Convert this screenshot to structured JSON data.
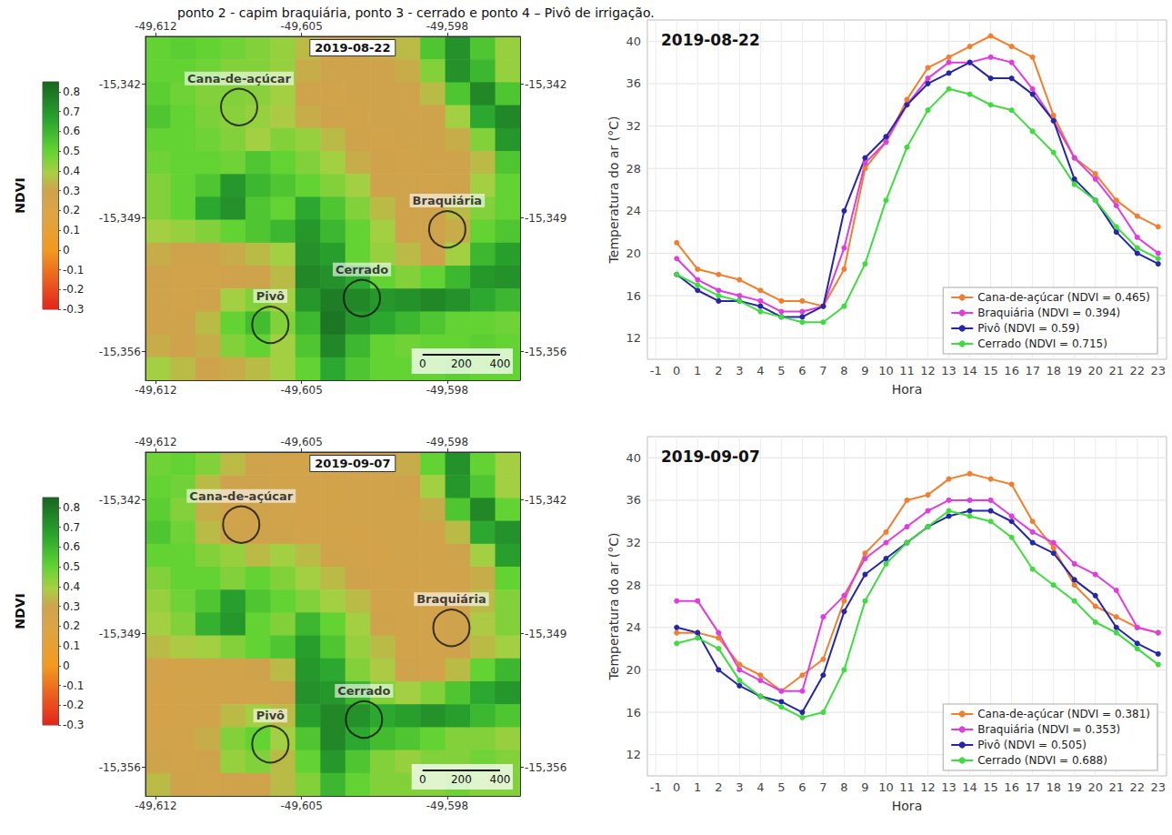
{
  "caption": "ponto 2 - capim braquiária, ponto 3 - cerrado e ponto 4 – Pivô de irrigação.",
  "chart_data": [
    {
      "type": "heatmap",
      "title": "2019-08-22",
      "x": [
        -49.6119,
        -49.6107,
        -49.6095,
        -49.6083,
        -49.6071,
        -49.6059,
        -49.6047,
        -49.6035,
        -49.6023,
        -49.6011,
        -49.5999,
        -49.5987,
        -49.5975,
        -49.5963,
        -49.5951
      ],
      "y": [
        -15.3401,
        -15.3413,
        -15.3425,
        -15.3437,
        -15.3449,
        -15.3461,
        -15.3473,
        -15.3485,
        -15.3497,
        -15.3509,
        -15.3521,
        -15.3533,
        -15.3545,
        -15.3557,
        -15.3569
      ],
      "values": [
        [
          0.5,
          0.52,
          0.5,
          0.48,
          0.45,
          0.42,
          0.35,
          0.3,
          0.3,
          0.32,
          0.35,
          0.55,
          0.72,
          0.55,
          0.42
        ],
        [
          0.5,
          0.5,
          0.48,
          0.45,
          0.45,
          0.42,
          0.32,
          0.3,
          0.3,
          0.3,
          0.32,
          0.45,
          0.72,
          0.6,
          0.42
        ],
        [
          0.52,
          0.48,
          0.45,
          0.45,
          0.44,
          0.4,
          0.3,
          0.28,
          0.3,
          0.3,
          0.3,
          0.35,
          0.55,
          0.75,
          0.55
        ],
        [
          0.55,
          0.5,
          0.46,
          0.44,
          0.42,
          0.38,
          0.32,
          0.3,
          0.28,
          0.3,
          0.3,
          0.3,
          0.4,
          0.65,
          0.75
        ],
        [
          0.5,
          0.5,
          0.48,
          0.45,
          0.4,
          0.45,
          0.42,
          0.35,
          0.3,
          0.28,
          0.3,
          0.3,
          0.32,
          0.45,
          0.7
        ],
        [
          0.48,
          0.5,
          0.5,
          0.48,
          0.55,
          0.5,
          0.45,
          0.4,
          0.32,
          0.3,
          0.28,
          0.3,
          0.3,
          0.35,
          0.55
        ],
        [
          0.45,
          0.5,
          0.55,
          0.7,
          0.6,
          0.55,
          0.5,
          0.45,
          0.4,
          0.3,
          0.3,
          0.28,
          0.3,
          0.4,
          0.5
        ],
        [
          0.45,
          0.5,
          0.65,
          0.72,
          0.55,
          0.5,
          0.65,
          0.55,
          0.45,
          0.35,
          0.3,
          0.3,
          0.35,
          0.45,
          0.5
        ],
        [
          0.4,
          0.42,
          0.45,
          0.5,
          0.55,
          0.6,
          0.7,
          0.6,
          0.5,
          0.4,
          0.3,
          0.3,
          0.32,
          0.5,
          0.55
        ],
        [
          0.32,
          0.3,
          0.3,
          0.32,
          0.35,
          0.4,
          0.72,
          0.68,
          0.5,
          0.42,
          0.35,
          0.3,
          0.4,
          0.6,
          0.68
        ],
        [
          0.3,
          0.28,
          0.28,
          0.3,
          0.3,
          0.35,
          0.75,
          0.72,
          0.65,
          0.5,
          0.45,
          0.5,
          0.6,
          0.7,
          0.72
        ],
        [
          0.3,
          0.28,
          0.3,
          0.4,
          0.45,
          0.4,
          0.7,
          0.78,
          0.75,
          0.7,
          0.72,
          0.75,
          0.72,
          0.65,
          0.6
        ],
        [
          0.3,
          0.3,
          0.35,
          0.5,
          0.58,
          0.45,
          0.6,
          0.8,
          0.7,
          0.65,
          0.6,
          0.55,
          0.5,
          0.5,
          0.48
        ],
        [
          0.32,
          0.3,
          0.32,
          0.45,
          0.5,
          0.4,
          0.55,
          0.75,
          0.6,
          0.5,
          0.48,
          0.5,
          0.5,
          0.52,
          0.5
        ],
        [
          0.4,
          0.35,
          0.3,
          0.32,
          0.35,
          0.4,
          0.5,
          0.65,
          0.55,
          0.5,
          0.5,
          0.5,
          0.52,
          0.5,
          0.5
        ]
      ],
      "xlim": [
        -49.6125,
        -49.5945
      ],
      "ylim": [
        -15.3575,
        -15.3395
      ],
      "xticks": [
        {
          "value": -49.612,
          "label": "-49,612"
        },
        {
          "value": -49.605,
          "label": "-49,605"
        },
        {
          "value": -49.598,
          "label": "-49,598"
        }
      ],
      "yticks": [
        {
          "value": -15.356,
          "label": "-15,356"
        },
        {
          "value": -15.349,
          "label": "-15,349"
        },
        {
          "value": -15.342,
          "label": "-15,342"
        }
      ],
      "colorbar": {
        "label": "NDVI",
        "range": [
          -0.3,
          0.85
        ],
        "ticks": [
          -0.3,
          -0.2,
          -0.1,
          0,
          0.1,
          0.2,
          0.3,
          0.4,
          0.5,
          0.6,
          0.7,
          0.8
        ]
      },
      "annotations": [
        {
          "text": "Cana-de-açúcar",
          "x": -49.608,
          "y": -15.3432
        },
        {
          "text": "Braquiária",
          "x": -49.598,
          "y": -15.3496
        },
        {
          "text": "Cerrado",
          "x": -49.6021,
          "y": -15.3532
        },
        {
          "text": "Pivô",
          "x": -49.6065,
          "y": -15.3546
        }
      ],
      "scale_bar": [
        0,
        200,
        400
      ]
    },
    {
      "type": "line",
      "title": "2019-08-22",
      "xlabel": "Hora",
      "ylabel": "Temperatura do ar (°C)",
      "x": [
        0,
        1,
        2,
        3,
        4,
        5,
        6,
        7,
        8,
        9,
        10,
        11,
        12,
        13,
        14,
        15,
        16,
        17,
        18,
        19,
        20,
        21,
        22,
        23
      ],
      "xlim": [
        -1.4,
        23.4
      ],
      "xticks": [
        -1,
        0,
        1,
        2,
        3,
        4,
        5,
        6,
        7,
        8,
        9,
        10,
        11,
        12,
        13,
        14,
        15,
        16,
        17,
        18,
        19,
        20,
        21,
        22,
        23
      ],
      "ylim": [
        10,
        42
      ],
      "yticks": [
        12,
        16,
        20,
        24,
        28,
        32,
        36,
        40
      ],
      "grid": true,
      "legend": "lower right",
      "marker": "circle",
      "line_style": "solid",
      "series": [
        {
          "name": "Cana-de-açúcar (NDVI = 0.465)",
          "color": "#f07f2e",
          "values": [
            21,
            18.5,
            18,
            17.5,
            16.5,
            15.5,
            15.5,
            15,
            18.5,
            28,
            30.5,
            34.5,
            37.5,
            38.5,
            39.5,
            40.5,
            39.5,
            38.5,
            33,
            29,
            27.5,
            25,
            23.5,
            22.5
          ]
        },
        {
          "name": "Braquiária (NDVI = 0.394)",
          "color": "#e03ce0",
          "values": [
            19.5,
            17.5,
            16.5,
            16,
            15.5,
            14.5,
            14.5,
            15,
            20.5,
            28.5,
            30.5,
            34,
            36.5,
            38,
            38,
            38.5,
            38,
            35.5,
            32.5,
            29,
            27,
            24.5,
            21.5,
            20
          ]
        },
        {
          "name": "Pivô (NDVI = 0.59)",
          "color": "#2626a8",
          "values": [
            18,
            16.5,
            15.5,
            15.5,
            15,
            14,
            14,
            15,
            24,
            29,
            31,
            34,
            36,
            37,
            38,
            36.5,
            36.5,
            35,
            32.5,
            27,
            25,
            22,
            20,
            19
          ]
        },
        {
          "name": "Cerrado (NDVI = 0.715)",
          "color": "#3fdc3f",
          "values": [
            18,
            17,
            16,
            15.5,
            14.5,
            14,
            13.5,
            13.5,
            15,
            19,
            25,
            30,
            33.5,
            35.5,
            35,
            34,
            33.5,
            31.5,
            29.5,
            26.5,
            25,
            22.5,
            20.5,
            19.5
          ]
        }
      ]
    },
    {
      "type": "heatmap",
      "title": "2019-09-07",
      "x": [
        -49.6119,
        -49.6107,
        -49.6095,
        -49.6083,
        -49.6071,
        -49.6059,
        -49.6047,
        -49.6035,
        -49.6023,
        -49.6011,
        -49.5999,
        -49.5987,
        -49.5975,
        -49.5963,
        -49.5951
      ],
      "y": [
        -15.3401,
        -15.3413,
        -15.3425,
        -15.3437,
        -15.3449,
        -15.3461,
        -15.3473,
        -15.3485,
        -15.3497,
        -15.3509,
        -15.3521,
        -15.3533,
        -15.3545,
        -15.3557,
        -15.3569
      ],
      "values": [
        [
          0.48,
          0.5,
          0.45,
          0.35,
          0.3,
          0.28,
          0.28,
          0.28,
          0.3,
          0.3,
          0.32,
          0.5,
          0.72,
          0.5,
          0.4
        ],
        [
          0.5,
          0.48,
          0.35,
          0.3,
          0.3,
          0.28,
          0.28,
          0.27,
          0.28,
          0.28,
          0.3,
          0.4,
          0.7,
          0.55,
          0.4
        ],
        [
          0.52,
          0.45,
          0.32,
          0.28,
          0.3,
          0.28,
          0.27,
          0.27,
          0.28,
          0.28,
          0.28,
          0.32,
          0.55,
          0.75,
          0.5
        ],
        [
          0.55,
          0.48,
          0.35,
          0.3,
          0.3,
          0.3,
          0.28,
          0.27,
          0.27,
          0.28,
          0.28,
          0.28,
          0.35,
          0.65,
          0.72
        ],
        [
          0.5,
          0.5,
          0.45,
          0.42,
          0.35,
          0.4,
          0.35,
          0.3,
          0.28,
          0.27,
          0.28,
          0.28,
          0.3,
          0.4,
          0.68
        ],
        [
          0.45,
          0.5,
          0.5,
          0.45,
          0.5,
          0.45,
          0.4,
          0.35,
          0.3,
          0.28,
          0.27,
          0.28,
          0.28,
          0.32,
          0.5
        ],
        [
          0.42,
          0.48,
          0.55,
          0.68,
          0.55,
          0.5,
          0.45,
          0.4,
          0.35,
          0.28,
          0.28,
          0.27,
          0.28,
          0.35,
          0.45
        ],
        [
          0.4,
          0.45,
          0.62,
          0.7,
          0.5,
          0.45,
          0.6,
          0.5,
          0.4,
          0.3,
          0.28,
          0.28,
          0.3,
          0.38,
          0.45
        ],
        [
          0.35,
          0.38,
          0.4,
          0.45,
          0.5,
          0.55,
          0.68,
          0.55,
          0.42,
          0.35,
          0.28,
          0.28,
          0.3,
          0.35,
          0.4
        ],
        [
          0.28,
          0.27,
          0.28,
          0.28,
          0.3,
          0.35,
          0.7,
          0.65,
          0.45,
          0.38,
          0.3,
          0.28,
          0.35,
          0.5,
          0.6
        ],
        [
          0.27,
          0.27,
          0.27,
          0.28,
          0.28,
          0.3,
          0.72,
          0.7,
          0.6,
          0.45,
          0.4,
          0.45,
          0.55,
          0.65,
          0.7
        ],
        [
          0.27,
          0.27,
          0.28,
          0.35,
          0.4,
          0.35,
          0.68,
          0.75,
          0.72,
          0.65,
          0.68,
          0.72,
          0.68,
          0.6,
          0.55
        ],
        [
          0.28,
          0.28,
          0.32,
          0.45,
          0.5,
          0.4,
          0.55,
          0.75,
          0.65,
          0.58,
          0.55,
          0.5,
          0.45,
          0.45,
          0.42
        ],
        [
          0.3,
          0.28,
          0.3,
          0.42,
          0.45,
          0.35,
          0.5,
          0.7,
          0.55,
          0.45,
          0.42,
          0.45,
          0.45,
          0.48,
          0.45
        ],
        [
          0.35,
          0.3,
          0.28,
          0.3,
          0.3,
          0.35,
          0.45,
          0.6,
          0.5,
          0.45,
          0.45,
          0.45,
          0.48,
          0.45,
          0.45
        ]
      ],
      "xlim": [
        -49.6125,
        -49.5945
      ],
      "ylim": [
        -15.3575,
        -15.3395
      ],
      "xticks": [
        {
          "value": -49.612,
          "label": "-49,612"
        },
        {
          "value": -49.605,
          "label": "-49,605"
        },
        {
          "value": -49.598,
          "label": "-49,598"
        }
      ],
      "yticks": [
        {
          "value": -15.356,
          "label": "-15,356"
        },
        {
          "value": -15.349,
          "label": "-15,349"
        },
        {
          "value": -15.342,
          "label": "-15,342"
        }
      ],
      "colorbar": {
        "label": "NDVI",
        "range": [
          -0.3,
          0.85
        ],
        "ticks": [
          -0.3,
          -0.2,
          -0.1,
          0,
          0.1,
          0.2,
          0.3,
          0.4,
          0.5,
          0.6,
          0.7,
          0.8
        ]
      },
      "annotations": [
        {
          "text": "Cana-de-açúcar",
          "x": -49.6079,
          "y": -15.3433
        },
        {
          "text": "Braquiária",
          "x": -49.5978,
          "y": -15.3487
        },
        {
          "text": "Cerrado",
          "x": -49.602,
          "y": -15.3535
        },
        {
          "text": "Pivô",
          "x": -49.6065,
          "y": -15.3548
        }
      ],
      "scale_bar": [
        0,
        200,
        400
      ]
    },
    {
      "type": "line",
      "title": "2019-09-07",
      "xlabel": "Hora",
      "ylabel": "Temperatura do ar (°C)",
      "x": [
        0,
        1,
        2,
        3,
        4,
        5,
        6,
        7,
        8,
        9,
        10,
        11,
        12,
        13,
        14,
        15,
        16,
        17,
        18,
        19,
        20,
        21,
        22,
        23
      ],
      "xlim": [
        -1.4,
        23.4
      ],
      "xticks": [
        -1,
        0,
        1,
        2,
        3,
        4,
        5,
        6,
        7,
        8,
        9,
        10,
        11,
        12,
        13,
        14,
        15,
        16,
        17,
        18,
        19,
        20,
        21,
        22,
        23
      ],
      "ylim": [
        10,
        42
      ],
      "yticks": [
        12,
        16,
        20,
        24,
        28,
        32,
        36,
        40
      ],
      "grid": true,
      "legend": "lower right",
      "marker": "circle",
      "line_style": "solid",
      "series": [
        {
          "name": "Cana-de-açúcar (NDVI = 0.381)",
          "color": "#f07f2e",
          "values": [
            23.5,
            23.5,
            23,
            20.5,
            19.5,
            18,
            19.5,
            21,
            26.5,
            31,
            33,
            36,
            36.5,
            38,
            38.5,
            38,
            37.5,
            34,
            31.5,
            28,
            26,
            25,
            24,
            23.5
          ]
        },
        {
          "name": "Braquiária (NDVI = 0.353)",
          "color": "#e03ce0",
          "values": [
            26.5,
            26.5,
            23.5,
            20,
            19,
            18,
            18,
            25,
            27,
            30.5,
            32,
            33.5,
            35,
            36,
            36,
            36,
            34.5,
            33,
            32,
            30,
            29,
            27.5,
            24,
            23.5
          ]
        },
        {
          "name": "Pivô (NDVI = 0.505)",
          "color": "#2626a8",
          "values": [
            24,
            23.5,
            20,
            18.5,
            17.5,
            17,
            16,
            19.5,
            25.5,
            29,
            30.5,
            32,
            33.5,
            34.5,
            35,
            35,
            34,
            32,
            31,
            28.5,
            27,
            24,
            22.5,
            21.5
          ]
        },
        {
          "name": "Cerrado (NDVI = 0.688)",
          "color": "#3fdc3f",
          "values": [
            22.5,
            23,
            22,
            19,
            17.5,
            16.5,
            15.5,
            16,
            20,
            26.5,
            30,
            32,
            33.5,
            35,
            34.5,
            34,
            32.5,
            29.5,
            28,
            26.5,
            24.5,
            23.5,
            22,
            20.5
          ]
        }
      ]
    }
  ]
}
